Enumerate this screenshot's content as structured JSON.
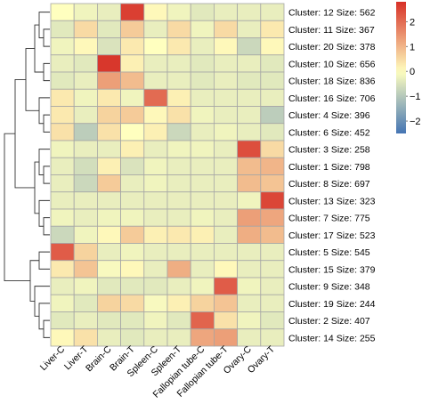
{
  "chart_data": {
    "type": "heatmap",
    "title": "",
    "xlabel": "",
    "ylabel": "",
    "columns": [
      "Liver-C",
      "Liver-T",
      "Brain-C",
      "Brain-T",
      "Spleen-C",
      "Spleen-T",
      "Fallopian tube-C",
      "Fallopian tube-T",
      "Ovary-C",
      "Ovary-T"
    ],
    "rows": [
      "Cluster: 12 Size: 562",
      "Cluster: 11 Size: 367",
      "Cluster: 20 Size: 378",
      "Cluster: 10 Size: 656",
      "Cluster: 18 Size: 836",
      "Cluster: 16 Size: 706",
      "Cluster: 4 Size: 396",
      "Cluster: 6 Size: 452",
      "Cluster: 3 Size: 258",
      "Cluster: 1 Size: 798",
      "Cluster: 8 Size: 697",
      "Cluster: 13 Size: 323",
      "Cluster: 7 Size: 775",
      "Cluster: 17 Size: 523",
      "Cluster: 5 Size: 545",
      "Cluster: 15 Size: 379",
      "Cluster: 9 Size: 348",
      "Cluster: 19 Size: 244",
      "Cluster: 2 Size: 407",
      "Cluster: 14 Size: 255"
    ],
    "values": [
      [
        0.0,
        -0.2,
        -0.3,
        2.6,
        0.1,
        -0.2,
        -0.4,
        -0.3,
        -0.3,
        -0.3
      ],
      [
        -0.4,
        0.5,
        -0.4,
        0.7,
        -0.3,
        0.5,
        -0.2,
        0.5,
        -0.3,
        0.3
      ],
      [
        -0.2,
        0.1,
        -0.5,
        0.3,
        0.0,
        0.3,
        -0.3,
        0.1,
        -0.7,
        0.1
      ],
      [
        -0.3,
        -0.4,
        2.7,
        0.2,
        -0.3,
        -0.3,
        -0.4,
        -0.3,
        -0.3,
        -0.4
      ],
      [
        -0.4,
        -0.3,
        1.3,
        0.9,
        -0.3,
        -0.3,
        -0.4,
        -0.3,
        -0.4,
        -0.4
      ],
      [
        0.3,
        -0.2,
        0.3,
        -0.2,
        2.0,
        0.2,
        -0.3,
        -0.3,
        -0.3,
        -0.3
      ],
      [
        0.3,
        -0.3,
        0.6,
        0.7,
        0.1,
        0.4,
        -0.2,
        -0.3,
        -0.3,
        -0.9
      ],
      [
        0.4,
        -0.9,
        0.4,
        0.0,
        0.2,
        -0.7,
        -0.3,
        -0.2,
        -0.3,
        -0.4
      ],
      [
        -0.2,
        -0.3,
        -0.3,
        0.2,
        -0.3,
        -0.2,
        -0.2,
        -0.3,
        2.4,
        0.5
      ],
      [
        -0.3,
        -0.6,
        0.2,
        -0.5,
        -0.2,
        -0.3,
        -0.3,
        -0.3,
        0.9,
        1.0
      ],
      [
        -0.3,
        -0.7,
        0.7,
        -0.3,
        -0.2,
        -0.3,
        -0.3,
        -0.3,
        0.9,
        0.8
      ],
      [
        -0.3,
        -0.3,
        -0.3,
        -0.3,
        -0.3,
        -0.3,
        -0.3,
        -0.3,
        -0.2,
        2.5
      ],
      [
        -0.2,
        -0.3,
        -0.2,
        -0.2,
        -0.3,
        -0.3,
        -0.2,
        -0.3,
        1.3,
        1.2
      ],
      [
        -0.7,
        -0.2,
        0.1,
        0.7,
        0.2,
        0.3,
        0.2,
        -0.3,
        1.1,
        0.9
      ],
      [
        2.2,
        0.6,
        -0.3,
        -0.2,
        -0.3,
        -0.3,
        -0.3,
        -0.3,
        -0.3,
        -0.3
      ],
      [
        0.3,
        0.8,
        -0.1,
        0.1,
        -0.3,
        1.1,
        -0.3,
        0.1,
        -0.3,
        -0.3
      ],
      [
        -0.3,
        -0.2,
        -0.4,
        -0.4,
        -0.4,
        -0.3,
        -0.2,
        2.2,
        -0.2,
        -0.3
      ],
      [
        -0.2,
        -0.4,
        0.6,
        0.5,
        -0.1,
        0.2,
        0.6,
        0.8,
        -0.3,
        -0.3
      ],
      [
        -0.4,
        -0.3,
        -0.4,
        -0.4,
        -0.2,
        -0.4,
        2.1,
        0.4,
        -0.2,
        -0.4
      ],
      [
        0.1,
        0.4,
        -0.3,
        -0.4,
        -0.3,
        -0.3,
        1.2,
        1.3,
        -0.3,
        -0.3
      ]
    ],
    "color_scale": {
      "min": -2.5,
      "mid": 0,
      "max": 2.8,
      "low_color": "#4575b4",
      "mid_color": "#ffffbf",
      "high_color": "#d73027",
      "ticks": [
        "2",
        "1",
        "0",
        "−1",
        "−2"
      ],
      "tick_values": [
        2,
        1,
        0,
        -1,
        -2
      ]
    },
    "legend_placement": "top-right",
    "row_dendrogram": "left",
    "grid_color": "#a6a6a6"
  }
}
